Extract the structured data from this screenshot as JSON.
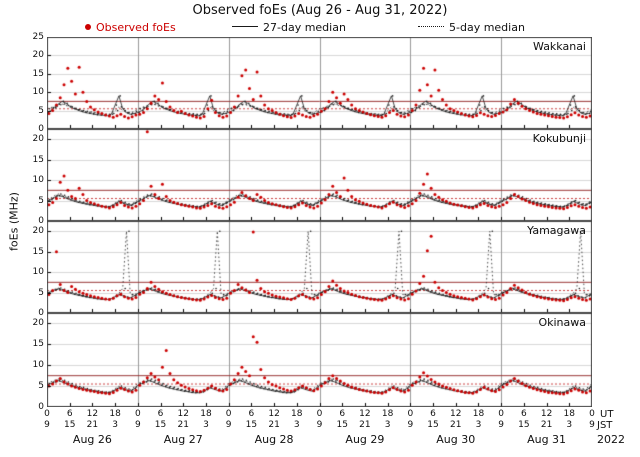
{
  "chart_data": {
    "type": "scatter",
    "title": "Observed foEs (Aug 26 - Aug 31, 2022)",
    "ylabel": "foEs (MHz)",
    "legend": [
      {
        "label": "Observed foEs",
        "color": "#cc0000",
        "marker": "dot"
      },
      {
        "label": "27-day median",
        "color": "#1a1a1a",
        "marker": "solid-line"
      },
      {
        "label": "5-day median",
        "color": "#1a1a1a",
        "marker": "dotted-line"
      }
    ],
    "axis": {
      "x_start_hour": 0,
      "x_end_hour": 144,
      "tick_step_hours": 6,
      "ut_row_label": "UT",
      "jst_row_label": "JST",
      "jst_offset_hours": 9,
      "year_label": "2022",
      "day_labels": [
        "Aug 26",
        "Aug 27",
        "Aug 28",
        "Aug 29",
        "Aug 30",
        "Aug 31"
      ]
    },
    "thresholds": {
      "solid_red_mhz": 7.5,
      "dotted_red_mhz": 5.5
    },
    "colors": {
      "observed": "#cc0000",
      "median": "#1a1a1a",
      "grid": "#d8d8d8",
      "day_separator": "#999999",
      "threshold_solid": "#993333",
      "threshold_dotted": "#cc4444",
      "border": "#444444"
    },
    "stations": [
      {
        "name": "Wakkanai",
        "ylim": [
          0,
          25
        ],
        "yticks": [
          0,
          5,
          10,
          15,
          20,
          25
        ],
        "observed_hourly": [
          4.2,
          5.0,
          6.5,
          8.5,
          12.0,
          16.5,
          13.0,
          9.5,
          16.8,
          10.0,
          7.5,
          6.0,
          5.2,
          4.6,
          4.2,
          3.8,
          3.5,
          3.2,
          3.6,
          4.0,
          3.4,
          3.0,
          3.3,
          3.8,
          4.0,
          4.5,
          5.5,
          7.0,
          9.0,
          8.0,
          12.5,
          7.5,
          6.0,
          5.0,
          4.5,
          4.8,
          4.2,
          3.8,
          3.5,
          3.2,
          3.0,
          3.4,
          5.5,
          7.8,
          4.5,
          3.6,
          3.2,
          3.5,
          4.5,
          6.0,
          9.0,
          14.5,
          16.0,
          11.0,
          8.0,
          15.5,
          9.0,
          6.5,
          5.5,
          5.0,
          4.5,
          4.0,
          3.6,
          3.3,
          3.1,
          3.5,
          4.2,
          3.8,
          3.4,
          3.2,
          3.6,
          4.0,
          4.8,
          5.5,
          7.5,
          10.0,
          8.5,
          7.0,
          9.5,
          8.0,
          6.5,
          5.5,
          5.0,
          4.6,
          4.2,
          3.9,
          3.6,
          3.4,
          3.2,
          3.6,
          4.5,
          5.0,
          4.0,
          3.5,
          3.3,
          3.8,
          5.0,
          6.5,
          10.5,
          16.5,
          12.0,
          9.0,
          16.0,
          10.5,
          8.0,
          6.5,
          5.5,
          5.0,
          4.6,
          4.2,
          3.8,
          3.5,
          3.3,
          3.7,
          4.4,
          4.0,
          3.6,
          3.4,
          3.7,
          4.2,
          4.6,
          5.2,
          6.8,
          8.0,
          7.0,
          6.2,
          5.5,
          5.0,
          4.6,
          4.2,
          4.0,
          3.8,
          3.6,
          3.4,
          3.2,
          3.1,
          3.0,
          3.3,
          3.9,
          4.4,
          3.8,
          3.4,
          3.2,
          3.5
        ],
        "median27_diurnal": [
          4.5,
          5.0,
          5.8,
          6.8,
          7.5,
          7.0,
          6.2,
          5.6,
          5.2,
          4.8,
          4.5,
          4.3,
          4.1,
          3.9,
          3.8,
          3.7,
          3.6,
          4.0,
          6.5,
          9.0,
          5.5,
          4.4,
          4.0,
          4.2
        ],
        "median5_diurnal": [
          5.5,
          5.8,
          6.2,
          6.6,
          6.8,
          6.4,
          6.0,
          5.6,
          5.3,
          5.0,
          4.8,
          4.6,
          4.4,
          4.2,
          4.1,
          4.0,
          3.9,
          4.2,
          5.0,
          6.0,
          5.0,
          4.5,
          4.3,
          4.8
        ]
      },
      {
        "name": "Kokubunji",
        "ylim": [
          0,
          22.5
        ],
        "yticks": [
          0,
          5,
          10,
          15,
          20
        ],
        "observed_hourly": [
          4.0,
          4.5,
          5.5,
          9.5,
          11.0,
          7.5,
          6.0,
          5.5,
          8.0,
          6.5,
          5.0,
          4.5,
          4.2,
          3.9,
          3.6,
          3.4,
          3.2,
          3.5,
          4.0,
          4.5,
          3.8,
          3.4,
          3.2,
          3.6,
          4.2,
          5.0,
          21.8,
          8.5,
          6.5,
          5.5,
          9.0,
          6.0,
          5.0,
          4.6,
          4.3,
          4.0,
          3.8,
          3.6,
          3.4,
          3.2,
          3.1,
          3.4,
          3.8,
          4.2,
          3.6,
          3.3,
          3.1,
          3.5,
          4.0,
          4.6,
          5.8,
          7.0,
          6.2,
          5.5,
          5.0,
          6.5,
          5.8,
          5.0,
          4.5,
          4.2,
          4.0,
          3.7,
          3.5,
          3.3,
          3.2,
          3.5,
          4.0,
          4.4,
          3.8,
          3.4,
          3.2,
          3.6,
          4.4,
          5.2,
          6.5,
          8.5,
          7.0,
          6.0,
          10.5,
          7.5,
          6.0,
          5.2,
          4.8,
          4.4,
          4.1,
          3.8,
          3.6,
          3.4,
          3.2,
          3.6,
          4.2,
          4.6,
          4.0,
          3.6,
          3.3,
          3.7,
          4.2,
          5.0,
          6.8,
          9.0,
          11.5,
          8.0,
          6.5,
          5.8,
          5.2,
          4.8,
          4.4,
          4.1,
          3.9,
          3.7,
          3.5,
          3.3,
          3.2,
          3.5,
          4.0,
          4.3,
          3.8,
          3.5,
          3.3,
          3.6,
          4.0,
          4.5,
          5.5,
          6.5,
          6.0,
          5.4,
          5.0,
          4.6,
          4.3,
          4.0,
          3.8,
          3.6,
          3.5,
          3.3,
          3.2,
          3.1,
          3.0,
          3.3,
          3.7,
          4.0,
          3.6,
          3.3,
          3.1,
          3.4
        ],
        "median27_diurnal": [
          4.8,
          5.2,
          5.8,
          6.2,
          6.0,
          5.6,
          5.2,
          4.9,
          4.6,
          4.4,
          4.2,
          4.0,
          3.9,
          3.7,
          3.6,
          3.5,
          3.4,
          3.7,
          4.2,
          4.8,
          4.4,
          4.0,
          3.8,
          4.3
        ],
        "median5_diurnal": [
          5.2,
          5.6,
          6.2,
          6.6,
          6.3,
          5.9,
          5.5,
          5.1,
          4.8,
          4.6,
          4.4,
          4.2,
          4.0,
          3.9,
          3.7,
          3.6,
          3.5,
          3.8,
          4.4,
          5.0,
          4.6,
          4.2,
          4.0,
          4.5
        ]
      },
      {
        "name": "Yamagawa",
        "ylim": [
          0,
          22.5
        ],
        "yticks": [
          0,
          5,
          10,
          15,
          20
        ],
        "observed_hourly": [
          4.5,
          5.5,
          15.0,
          7.0,
          5.5,
          5.0,
          6.5,
          5.8,
          5.2,
          4.8,
          4.5,
          4.2,
          4.0,
          3.8,
          3.6,
          3.4,
          3.3,
          3.6,
          4.2,
          4.6,
          4.0,
          3.6,
          3.4,
          3.8,
          4.6,
          5.0,
          6.0,
          7.5,
          6.5,
          5.8,
          5.2,
          4.8,
          4.5,
          4.2,
          4.0,
          3.8,
          3.6,
          3.5,
          3.3,
          3.2,
          3.1,
          3.4,
          3.9,
          4.3,
          3.8,
          3.5,
          3.3,
          3.6,
          4.8,
          5.5,
          7.0,
          6.2,
          5.6,
          5.0,
          19.8,
          8.0,
          6.0,
          5.2,
          4.8,
          4.4,
          4.1,
          3.9,
          3.7,
          3.5,
          3.3,
          3.6,
          4.2,
          4.5,
          4.0,
          3.6,
          3.4,
          3.7,
          4.5,
          5.2,
          6.5,
          7.8,
          6.8,
          6.0,
          5.4,
          5.0,
          4.6,
          4.3,
          4.0,
          3.8,
          3.6,
          3.4,
          3.3,
          3.2,
          3.1,
          3.4,
          3.8,
          4.2,
          3.7,
          3.4,
          3.2,
          3.5,
          4.6,
          5.4,
          7.2,
          9.0,
          15.2,
          18.8,
          7.5,
          6.2,
          5.5,
          5.0,
          4.6,
          4.2,
          4.0,
          3.8,
          3.6,
          3.4,
          3.2,
          3.5,
          4.0,
          4.4,
          3.9,
          3.5,
          3.3,
          3.6,
          4.4,
          5.0,
          6.0,
          6.8,
          6.2,
          5.6,
          5.0,
          4.6,
          4.3,
          4.0,
          3.8,
          3.6,
          3.4,
          3.3,
          3.2,
          3.1,
          3.0,
          3.3,
          3.7,
          4.0,
          3.6,
          3.3,
          3.1,
          3.4
        ],
        "median27_diurnal": [
          4.8,
          5.2,
          5.6,
          5.9,
          5.6,
          5.2,
          4.9,
          4.6,
          4.4,
          4.2,
          4.0,
          3.8,
          3.7,
          3.5,
          3.4,
          3.3,
          3.3,
          3.5,
          4.0,
          4.5,
          4.2,
          3.9,
          3.7,
          4.2
        ],
        "median5_diurnal": [
          5.0,
          5.4,
          5.8,
          6.1,
          5.8,
          5.4,
          5.1,
          4.8,
          4.5,
          4.3,
          4.1,
          3.9,
          3.8,
          3.6,
          3.5,
          3.4,
          3.4,
          3.6,
          4.2,
          4.8,
          6.0,
          20.0,
          4.5,
          4.4
        ]
      },
      {
        "name": "Okinawa",
        "ylim": [
          0,
          22.5
        ],
        "yticks": [
          0,
          5,
          10,
          15,
          20
        ],
        "observed_hourly": [
          5.0,
          5.5,
          6.2,
          6.8,
          6.0,
          5.5,
          5.0,
          4.7,
          4.4,
          4.2,
          4.0,
          3.8,
          3.7,
          3.5,
          3.4,
          3.3,
          3.2,
          3.5,
          4.0,
          4.5,
          4.2,
          3.8,
          3.6,
          4.0,
          5.2,
          6.0,
          7.0,
          8.0,
          7.2,
          6.5,
          9.5,
          13.5,
          8.0,
          6.5,
          5.8,
          5.2,
          4.8,
          4.4,
          4.1,
          3.9,
          3.7,
          4.0,
          4.5,
          5.0,
          4.5,
          4.0,
          3.8,
          4.2,
          5.5,
          6.5,
          8.0,
          9.5,
          8.5,
          7.5,
          16.8,
          15.5,
          9.0,
          7.0,
          6.0,
          5.4,
          5.0,
          4.6,
          4.3,
          4.0,
          3.8,
          4.1,
          4.6,
          5.0,
          4.6,
          4.2,
          3.9,
          4.3,
          5.0,
          5.8,
          6.8,
          7.5,
          6.8,
          6.2,
          5.6,
          5.2,
          4.8,
          4.5,
          4.2,
          4.0,
          3.8,
          3.6,
          3.5,
          3.4,
          3.3,
          3.6,
          4.1,
          4.6,
          4.2,
          3.8,
          3.6,
          4.0,
          5.2,
          6.0,
          7.2,
          8.2,
          7.4,
          6.6,
          6.0,
          5.5,
          5.0,
          4.7,
          4.4,
          4.1,
          3.9,
          3.7,
          3.5,
          3.4,
          3.3,
          3.6,
          4.2,
          4.7,
          4.3,
          3.9,
          3.7,
          4.1,
          4.8,
          5.4,
          6.2,
          6.8,
          6.2,
          5.6,
          5.1,
          4.7,
          4.4,
          4.1,
          3.9,
          3.7,
          3.5,
          3.4,
          3.3,
          3.2,
          3.1,
          3.4,
          3.9,
          4.3,
          4.0,
          3.6,
          3.4,
          3.8
        ],
        "median27_diurnal": [
          5.2,
          5.6,
          6.0,
          6.3,
          6.0,
          5.6,
          5.2,
          4.9,
          4.6,
          4.4,
          4.2,
          4.0,
          3.8,
          3.7,
          3.5,
          3.4,
          3.4,
          3.6,
          4.1,
          4.6,
          4.3,
          4.0,
          3.8,
          4.4
        ],
        "median5_diurnal": [
          5.6,
          6.0,
          6.4,
          6.7,
          6.4,
          6.0,
          5.6,
          5.2,
          4.9,
          4.7,
          4.4,
          4.2,
          4.0,
          3.9,
          3.7,
          3.6,
          3.5,
          3.8,
          4.4,
          5.0,
          4.6,
          4.3,
          4.1,
          4.8
        ]
      }
    ]
  }
}
